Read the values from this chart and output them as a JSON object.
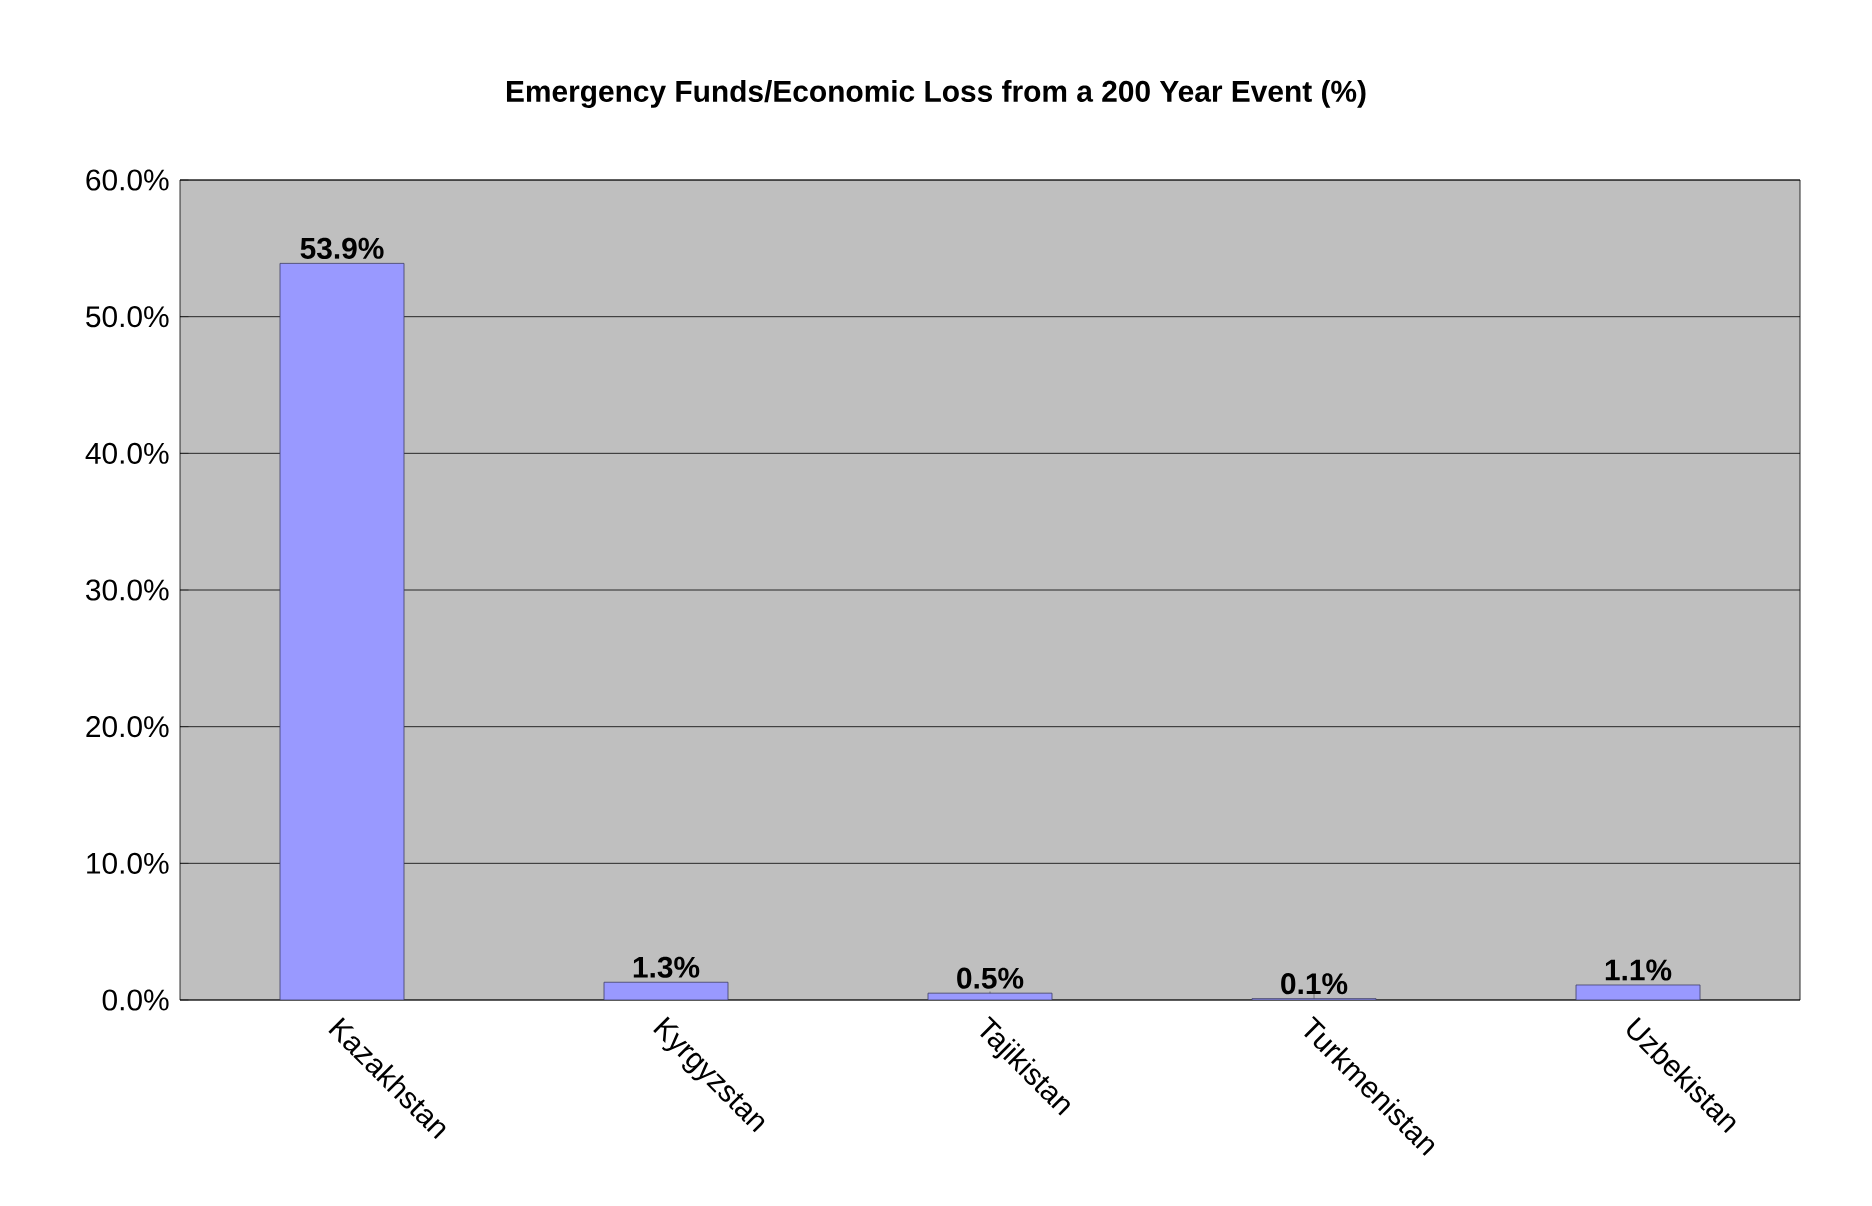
{
  "chart_data": {
    "type": "bar",
    "title": "Emergency Funds/Economic Loss from a 200 Year Event (%)",
    "categories": [
      "Kazakhstan",
      "Kyrgyzstan",
      "Tajikistan",
      "Turkmenistan",
      "Uzbekistan"
    ],
    "values": [
      53.9,
      1.3,
      0.5,
      0.1,
      1.1
    ],
    "value_labels": [
      "53.9%",
      "1.3%",
      "0.5%",
      "0.1%",
      "1.1%"
    ],
    "color": "#9999ff",
    "ylim": [
      0,
      60
    ],
    "yticks": [
      {
        "value": 0,
        "label": "0.0%"
      },
      {
        "value": 10,
        "label": "10.0%"
      },
      {
        "value": 20,
        "label": "20.0%"
      },
      {
        "value": 30,
        "label": "30.0%"
      },
      {
        "value": 40,
        "label": "40.0%"
      },
      {
        "value": 50,
        "label": "50.0%"
      },
      {
        "value": 60,
        "label": "60.0%"
      }
    ],
    "grid": "y"
  }
}
